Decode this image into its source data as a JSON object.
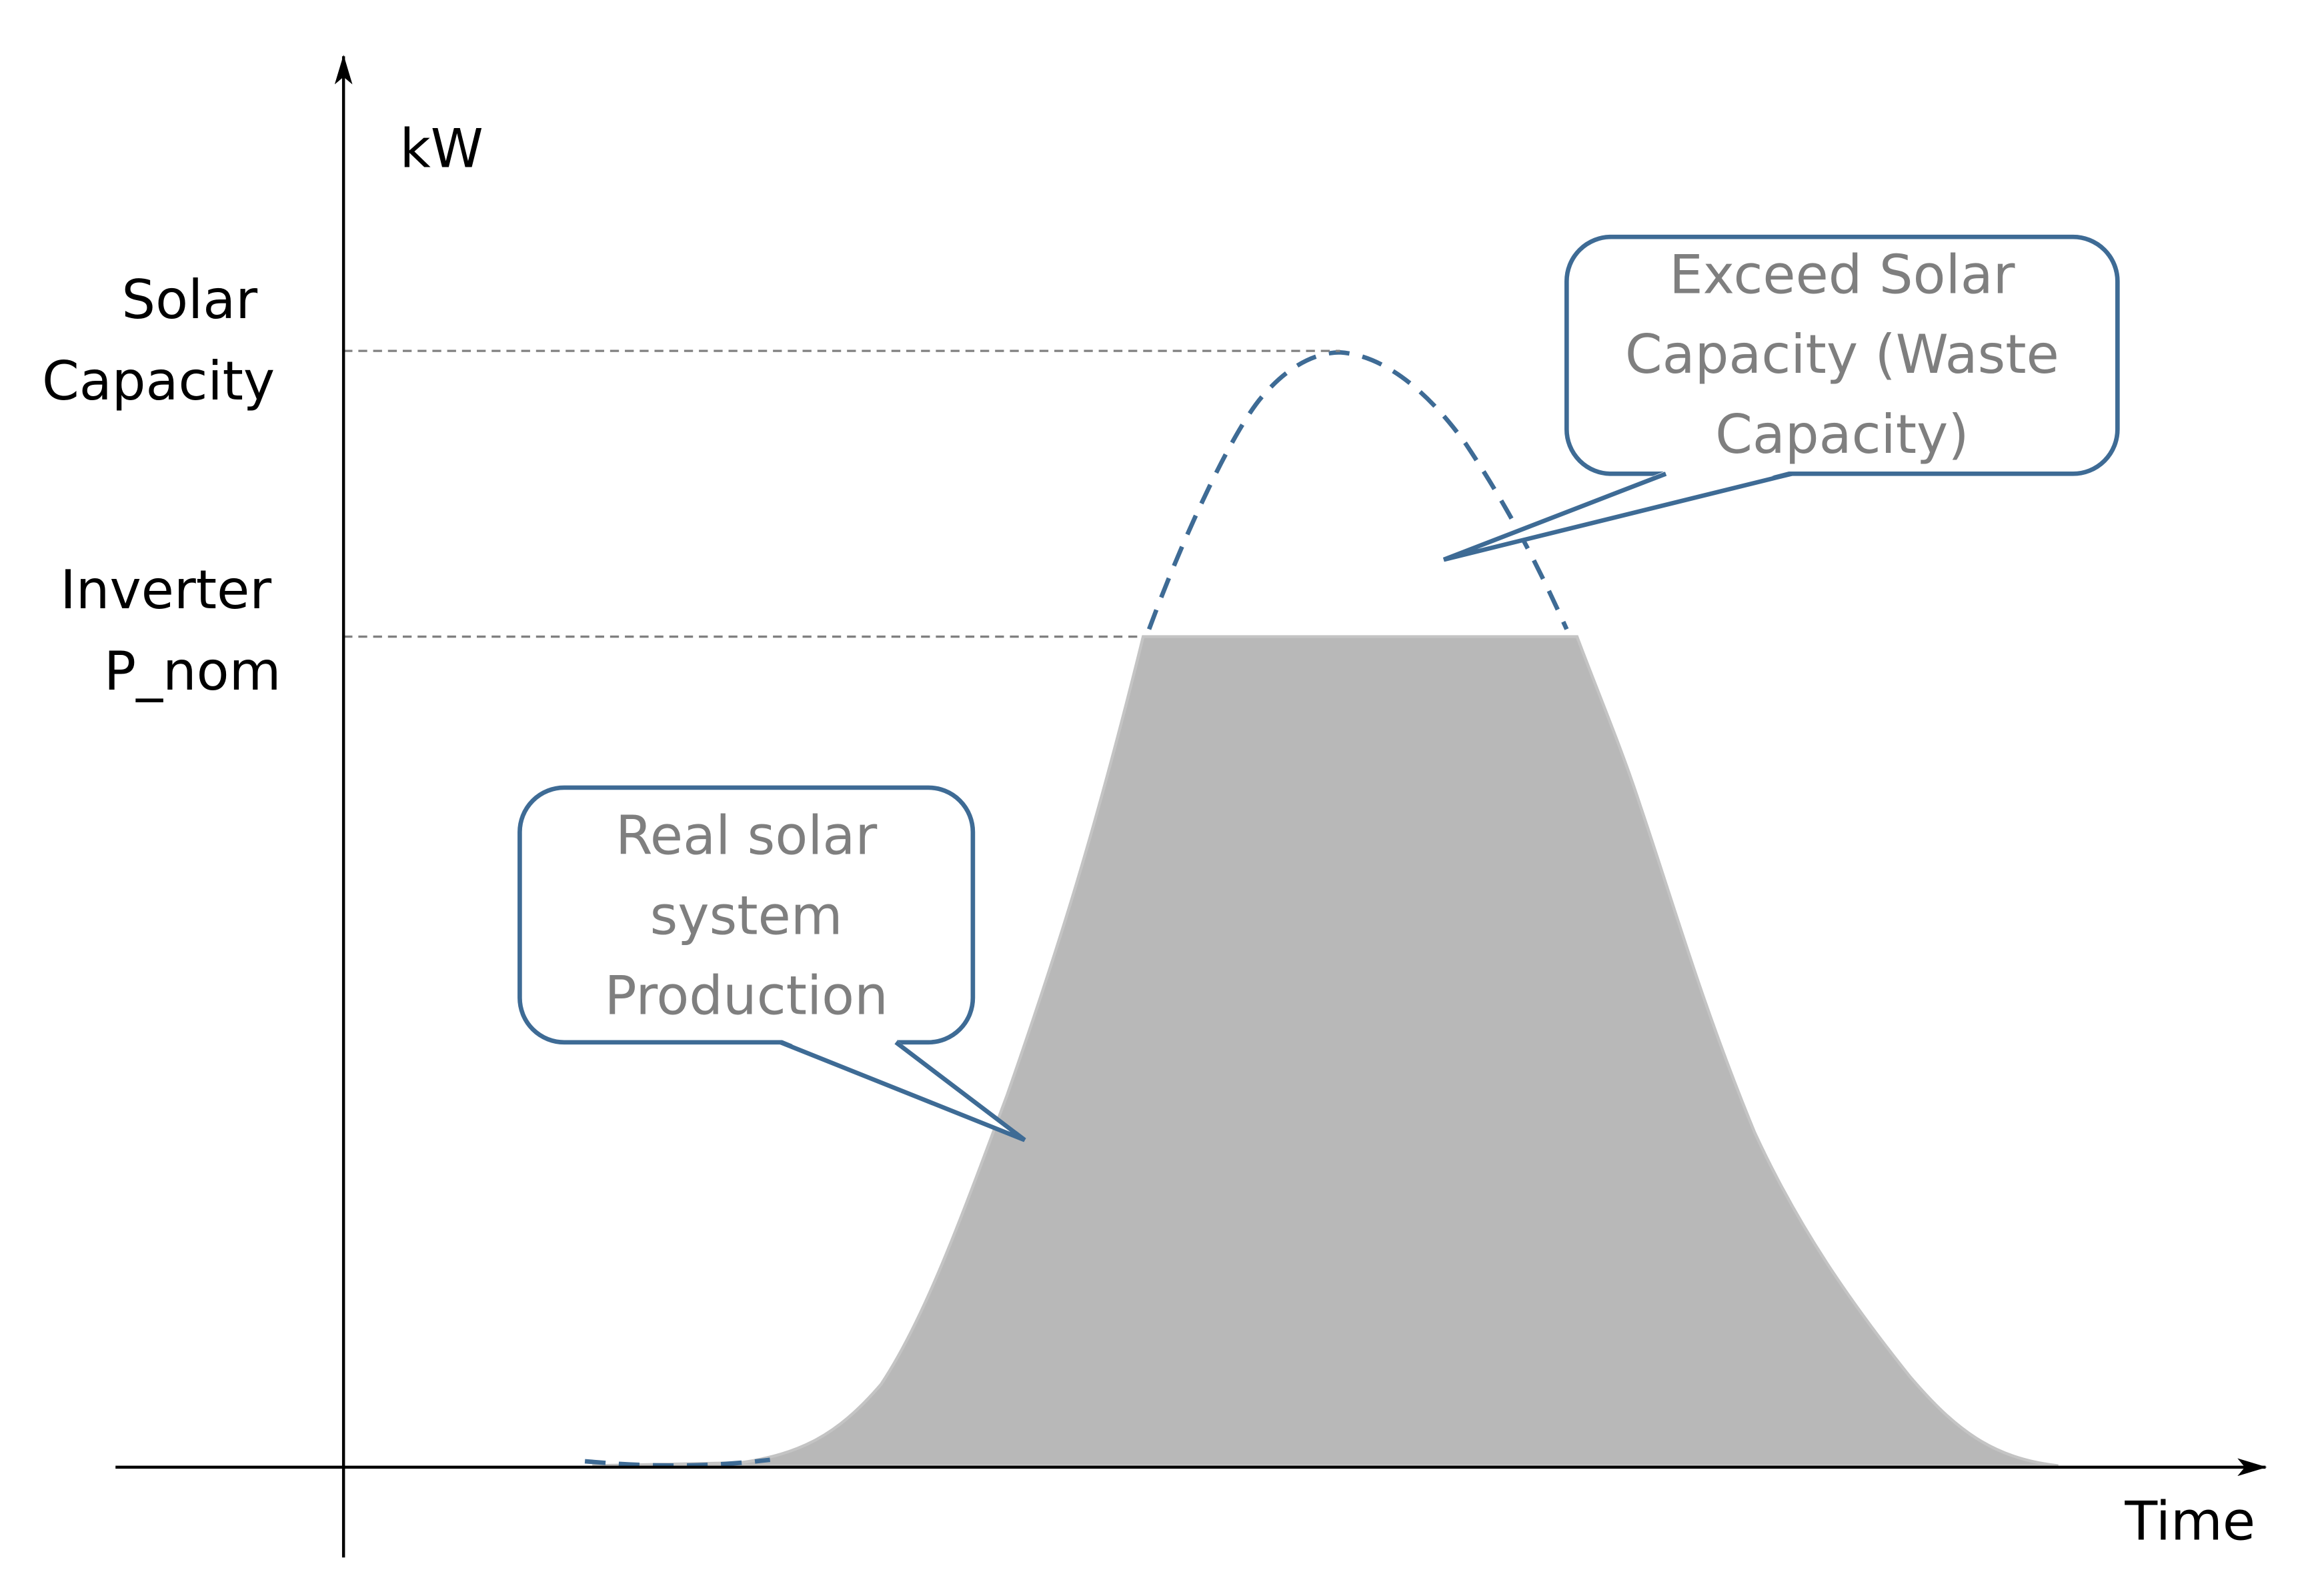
{
  "axes": {
    "y_label": "kW",
    "x_label": "Time"
  },
  "levels": [
    {
      "lines": [
        "Solar",
        "Capacity"
      ]
    },
    {
      "lines": [
        "Inverter",
        "P_nom"
      ]
    }
  ],
  "callouts": [
    {
      "lines": [
        "Exceed Solar",
        "Capacity (Waste",
        "Capacity)"
      ]
    },
    {
      "lines": [
        "Real solar",
        "system",
        "Production"
      ]
    }
  ]
}
